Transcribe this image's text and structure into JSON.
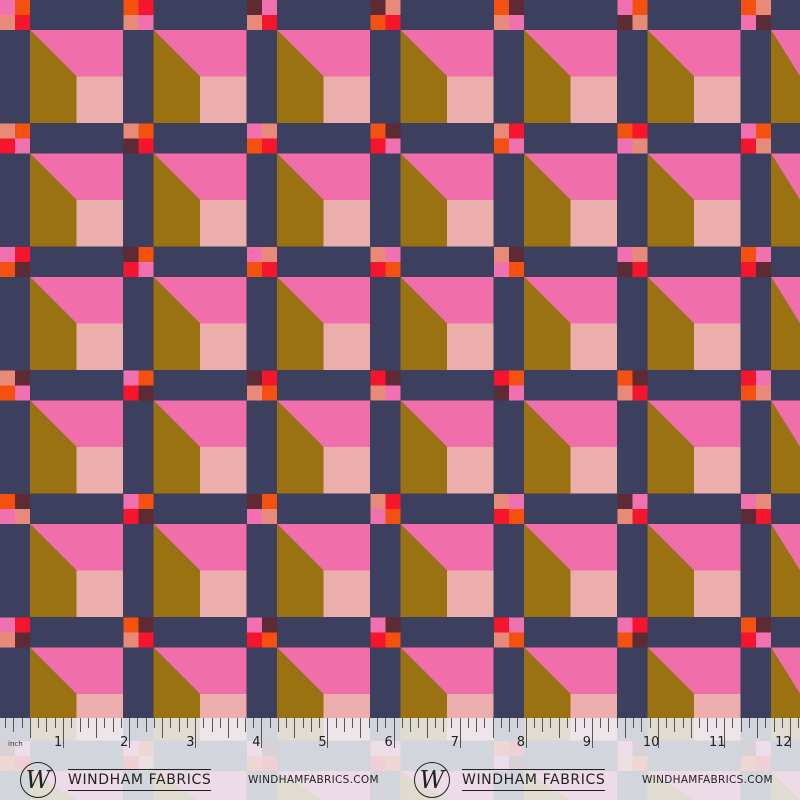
{
  "fabric": {
    "colors": {
      "sashing": "#3d3f5f",
      "pink": "#f06ea9",
      "olive": "#9a7212",
      "light_pink": "#ecadad"
    },
    "cornerstone_palette": [
      "#f5162d",
      "#f4500f",
      "#5e2a33",
      "#f070b0",
      "#e88a7a"
    ]
  },
  "ruler": {
    "unit_label": "inch",
    "numbers": [
      "1",
      "2",
      "3",
      "4",
      "5",
      "6",
      "7",
      "8",
      "9",
      "10",
      "11",
      "12"
    ]
  },
  "branding": [
    {
      "logo_letter": "W",
      "name": "WINDHAM FABRICS",
      "url": "WINDHAMFABRICS.COM"
    },
    {
      "logo_letter": "W",
      "name": "WINDHAM FABRICS",
      "url": "WINDHAMFABRICS.COM"
    }
  ]
}
